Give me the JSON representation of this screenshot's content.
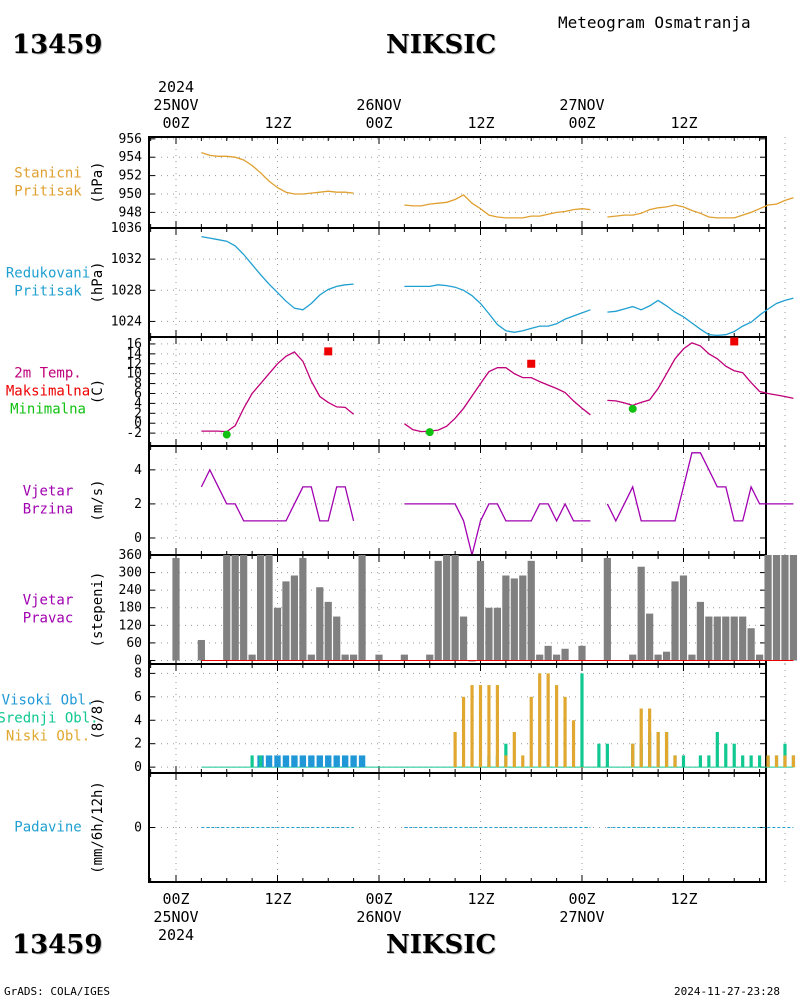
{
  "header": {
    "station_id": "13459",
    "station_name": "NIKSIC",
    "title": "Meteogram Osmatranja",
    "credit": "GrADS: COLA/IGES",
    "timestamp": "2024-11-27-23:28"
  },
  "colors": {
    "pressure": "#e0a030",
    "reduced": "#20a0d0",
    "temp": "#c0007a",
    "tmax": "#ee0000",
    "tmin": "#10c010",
    "wind": "#a000b0",
    "dir_bar": "#808080",
    "high_cloud": "#2098d8",
    "mid_cloud": "#10c890",
    "low_cloud": "#e0a830",
    "precip": "#20a0d0"
  },
  "time_axis": {
    "top_year": "2024",
    "bottom_year": "2024",
    "date_labels": [
      "25NOV",
      "26NOV",
      "27NOV"
    ],
    "hour_labels": [
      "00Z",
      "12Z",
      "00Z",
      "12Z",
      "00Z",
      "12Z"
    ]
  },
  "chart_data": [
    {
      "type": "line",
      "panel": "stanicni-pritisak",
      "labels": [
        "Stanicni",
        "Pritisak"
      ],
      "ylabel": "(hPa)",
      "yticks": [
        948,
        950,
        952,
        954,
        956
      ],
      "ylim": [
        946.3,
        956.2
      ],
      "x_unit": "hours since 25NOV 00Z",
      "segments": [
        {
          "x": [
            3,
            4,
            5,
            6,
            7,
            8,
            9,
            10,
            11,
            12,
            13,
            14,
            15,
            16,
            17,
            18,
            19,
            20,
            21
          ],
          "y": [
            954.5,
            954.2,
            954.1,
            954.1,
            954.0,
            953.7,
            953.1,
            952.3,
            951.4,
            950.7,
            950.2,
            950.0,
            950.0,
            950.1,
            950.2,
            950.3,
            950.2,
            950.2,
            950.1
          ]
        },
        {
          "x": [
            27,
            28,
            29,
            30,
            31,
            32,
            33,
            34,
            35,
            36,
            37,
            38,
            39,
            40,
            41,
            42,
            43,
            44,
            45,
            46,
            47,
            48,
            49
          ],
          "y": [
            948.8,
            948.7,
            948.7,
            948.9,
            949.0,
            949.1,
            949.4,
            949.9,
            949.0,
            948.4,
            947.7,
            947.5,
            947.4,
            947.4,
            947.4,
            947.6,
            947.6,
            947.8,
            948.0,
            948.1,
            948.3,
            948.4,
            948.3
          ]
        },
        {
          "x": [
            51,
            52,
            53,
            54,
            55,
            56,
            57,
            58,
            59,
            60,
            61,
            62,
            63,
            64,
            65,
            66,
            67,
            68,
            69,
            70,
            71,
            72,
            73
          ],
          "y": [
            947.5,
            947.6,
            947.7,
            947.7,
            947.9,
            948.3,
            948.5,
            948.6,
            948.8,
            948.6,
            948.2,
            947.9,
            947.5,
            947.4,
            947.4,
            947.4,
            947.7,
            948.0,
            948.4,
            948.8,
            948.9,
            949.3,
            949.6
          ]
        }
      ]
    },
    {
      "type": "line",
      "panel": "redukovani-pritisak",
      "labels": [
        "Redukovani",
        "Pritisak"
      ],
      "ylabel": "(hPa)",
      "yticks": [
        1024,
        1028,
        1032,
        1036
      ],
      "ylim": [
        1022.0,
        1036.0
      ],
      "x_unit": "hours since 25NOV 00Z",
      "segments": [
        {
          "x": [
            3,
            4,
            5,
            6,
            7,
            8,
            9,
            10,
            11,
            12,
            13,
            14,
            15,
            16,
            17,
            18,
            19,
            20,
            21
          ],
          "y": [
            1034.9,
            1034.7,
            1034.5,
            1034.3,
            1033.7,
            1032.6,
            1031.3,
            1030.0,
            1028.8,
            1027.7,
            1026.6,
            1025.7,
            1025.5,
            1026.3,
            1027.4,
            1028.1,
            1028.5,
            1028.7,
            1028.8
          ]
        },
        {
          "x": [
            27,
            28,
            29,
            30,
            31,
            32,
            33,
            34,
            35,
            36,
            37,
            38,
            39,
            40,
            41,
            42,
            43,
            44,
            45,
            46,
            47,
            48,
            49
          ],
          "y": [
            1028.5,
            1028.5,
            1028.5,
            1028.5,
            1028.7,
            1028.6,
            1028.4,
            1028.0,
            1027.3,
            1026.3,
            1025.0,
            1023.6,
            1022.8,
            1022.6,
            1022.8,
            1023.1,
            1023.4,
            1023.4,
            1023.7,
            1024.3,
            1024.7,
            1025.1,
            1025.5
          ]
        },
        {
          "x": [
            51,
            52,
            53,
            54,
            55,
            56,
            57,
            58,
            59,
            60,
            61,
            62,
            63,
            64,
            65,
            66,
            67,
            68,
            69,
            70,
            71,
            72,
            73
          ],
          "y": [
            1025.2,
            1025.3,
            1025.6,
            1025.9,
            1025.5,
            1026.0,
            1026.7,
            1026.0,
            1025.2,
            1024.6,
            1023.8,
            1023.0,
            1022.3,
            1022.2,
            1022.3,
            1022.7,
            1023.4,
            1023.9,
            1024.8,
            1025.6,
            1026.3,
            1026.7,
            1027.0
          ]
        }
      ]
    },
    {
      "type": "line",
      "panel": "temperatura",
      "labels": [
        "2m Temp.",
        "Maksimalna",
        "Minimalna"
      ],
      "ylabel": "(C)",
      "yticks": [
        -2,
        0,
        2,
        4,
        6,
        8,
        10,
        12,
        14,
        16
      ],
      "ylim": [
        -4.6,
        17.4
      ],
      "x_unit": "hours since 25NOV 00Z",
      "segments": [
        {
          "x": [
            3,
            4,
            5,
            6,
            7,
            8,
            9,
            10,
            11,
            12,
            13,
            14,
            15,
            16,
            17,
            18,
            19,
            20,
            21
          ],
          "y": [
            -1.6,
            -1.6,
            -1.6,
            -1.7,
            -0.5,
            3.0,
            6.0,
            8.0,
            10.0,
            12.0,
            13.5,
            14.4,
            12.5,
            8.5,
            5.4,
            4.2,
            3.3,
            3.2,
            1.8
          ]
        },
        {
          "x": [
            27,
            28,
            29,
            30,
            31,
            32,
            33,
            34,
            35,
            36,
            37,
            38,
            39,
            40,
            41,
            42,
            43,
            44,
            45,
            46,
            47,
            48,
            49
          ],
          "y": [
            -0.1,
            -1.3,
            -1.7,
            -1.6,
            -1.4,
            -0.6,
            1.0,
            3.0,
            5.5,
            8.0,
            10.4,
            11.2,
            11.2,
            10.0,
            9.2,
            9.2,
            8.4,
            7.7,
            7.0,
            6.2,
            4.5,
            3.0,
            1.7
          ]
        },
        {
          "x": [
            51,
            52,
            53,
            54,
            55,
            56,
            57,
            58,
            59,
            60,
            61,
            62,
            63,
            64,
            65,
            66,
            67,
            68,
            69,
            70,
            71,
            72,
            73
          ],
          "y": [
            4.6,
            4.5,
            4.1,
            3.6,
            4.2,
            4.7,
            7.0,
            10.0,
            13.0,
            15.0,
            16.2,
            15.6,
            14.0,
            13.0,
            11.5,
            10.6,
            10.2,
            8.2,
            6.4,
            6.0,
            5.7,
            5.4,
            5.0
          ]
        }
      ],
      "maksimalna": [
        {
          "x": 18,
          "y": 14.5
        },
        {
          "x": 42,
          "y": 12.0
        },
        {
          "x": 66,
          "y": 16.5
        }
      ],
      "minimalna": [
        {
          "x": 6,
          "y": -2.3
        },
        {
          "x": 30,
          "y": -1.8
        },
        {
          "x": 54,
          "y": 2.9
        }
      ]
    },
    {
      "type": "line",
      "panel": "vjetar-brzina",
      "labels": [
        "Vjetar",
        "Brzina"
      ],
      "ylabel": "(m/s)",
      "yticks": [
        0,
        2,
        4
      ],
      "ylim": [
        -1.0,
        5.4
      ],
      "x_unit": "hours since 25NOV 00Z",
      "segments": [
        {
          "x": [
            3,
            4,
            5,
            6,
            7,
            8,
            9,
            10,
            11,
            12,
            13,
            14,
            15,
            16,
            17,
            18,
            19,
            20,
            21
          ],
          "y": [
            3,
            4,
            3,
            2,
            2,
            1,
            1,
            1,
            1,
            1,
            1,
            2,
            3,
            3,
            1,
            1,
            3,
            3,
            1
          ]
        },
        {
          "x": [
            27,
            28,
            29,
            30,
            31,
            32,
            33,
            34,
            35,
            36,
            37,
            38,
            39,
            40,
            41,
            42,
            43,
            44,
            45,
            46,
            47,
            48,
            49
          ],
          "y": [
            2,
            2,
            2,
            2,
            2,
            2,
            2,
            1,
            -1,
            1,
            2,
            2,
            1,
            1,
            1,
            1,
            2,
            2,
            1,
            2,
            1,
            1,
            1
          ]
        },
        {
          "x": [
            51,
            52,
            53,
            54,
            55,
            56,
            57,
            58,
            59,
            60,
            61,
            62,
            63,
            64,
            65,
            66,
            67,
            68,
            69,
            70,
            71,
            72,
            73
          ],
          "y": [
            2,
            1,
            2,
            3,
            1,
            1,
            1,
            1,
            1,
            3,
            5,
            5,
            4,
            3,
            3,
            1,
            1,
            3,
            2,
            2,
            2,
            2,
            2
          ]
        }
      ]
    },
    {
      "type": "bar",
      "panel": "vjetar-pravac",
      "labels": [
        "Vjetar",
        "Pravac"
      ],
      "ylabel": "(stepeni)",
      "yticks": [
        0,
        60,
        120,
        180,
        240,
        300,
        360
      ],
      "ylim": [
        -12,
        360
      ],
      "x": [
        0,
        3,
        6,
        7,
        8,
        9,
        10,
        11,
        12,
        13,
        14,
        15,
        16,
        17,
        18,
        19,
        20,
        21,
        22,
        24,
        27,
        30,
        31,
        32,
        33,
        34,
        35,
        36,
        37,
        38,
        39,
        40,
        41,
        42,
        43,
        44,
        45,
        46,
        48,
        51,
        54,
        55,
        56,
        57,
        58,
        59,
        60,
        61,
        62,
        63,
        64,
        65,
        66,
        67,
        68,
        69,
        70,
        71,
        72,
        73
      ],
      "values": [
        350,
        70,
        360,
        360,
        360,
        20,
        360,
        360,
        180,
        270,
        290,
        350,
        20,
        250,
        200,
        150,
        20,
        20,
        360,
        20,
        20,
        20,
        340,
        360,
        360,
        150,
        0,
        340,
        180,
        180,
        290,
        280,
        290,
        340,
        20,
        50,
        20,
        40,
        50,
        350,
        20,
        320,
        160,
        20,
        30,
        270,
        290,
        20,
        200,
        150,
        150,
        150,
        150,
        150,
        110,
        20,
        360,
        360,
        360,
        360
      ]
    },
    {
      "type": "bar",
      "panel": "oblacnost",
      "labels": [
        "Visoki Obl.",
        "Srednji Obl.",
        "Niski Obl."
      ],
      "ylabel": "(8/8)",
      "yticks": [
        0,
        2,
        4,
        6,
        8
      ],
      "ylim": [
        -0.5,
        8.8
      ],
      "x_unit": "hours since 25NOV 00Z",
      "visoki": {
        "x": [
          10,
          11,
          12,
          13,
          14,
          15,
          16,
          17,
          18,
          19,
          20,
          21,
          22
        ],
        "y": [
          1,
          1,
          1,
          1,
          1,
          1,
          1,
          1,
          1,
          1,
          1,
          1,
          1
        ]
      },
      "srednji": {
        "x": [
          9,
          10,
          37,
          38,
          39,
          48,
          50,
          51,
          54,
          55,
          56,
          57,
          58,
          59,
          60,
          62,
          63,
          64,
          65,
          66,
          67,
          68,
          69,
          70,
          71,
          72,
          73
        ],
        "y": [
          1,
          1,
          1,
          1,
          2,
          8,
          2,
          2,
          2,
          2,
          3,
          3,
          3,
          1,
          1,
          1,
          1,
          3,
          2,
          2,
          1,
          1,
          1,
          1,
          1,
          2,
          1
        ]
      },
      "niski": {
        "x": [
          33,
          34,
          35,
          36,
          37,
          38,
          39,
          40,
          41,
          42,
          43,
          44,
          45,
          46,
          47,
          48,
          54,
          55,
          56,
          57,
          58,
          59,
          70,
          71,
          72,
          73
        ],
        "y": [
          3,
          6,
          7,
          7,
          7,
          7,
          1,
          3,
          1,
          6,
          8,
          8,
          7,
          6,
          4,
          0,
          2,
          5,
          5,
          3,
          3,
          1,
          1,
          1,
          1,
          1
        ]
      }
    },
    {
      "type": "bar",
      "panel": "padavine",
      "labels": [
        "Padavine"
      ],
      "ylabel": "(mm/6h/12h)",
      "yticks": [
        0
      ],
      "ylim": [
        -1,
        1
      ],
      "x_unit": "hours since 25NOV 00Z",
      "values_mm": [
        0,
        0,
        0,
        0,
        0,
        0,
        0
      ]
    }
  ]
}
